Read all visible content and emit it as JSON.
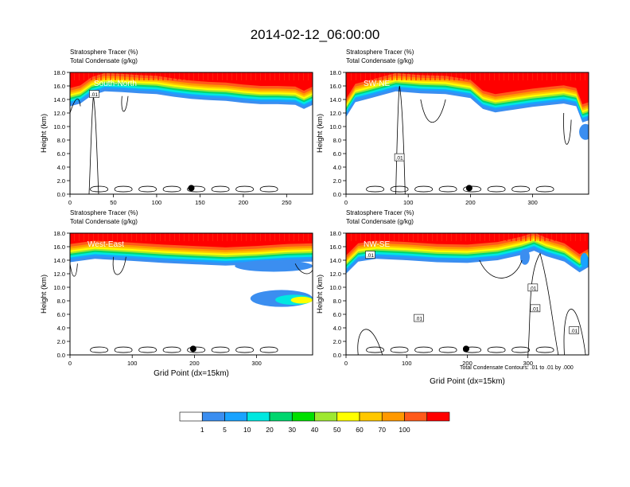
{
  "page_title": "2014-02-12_06:00:00",
  "colors": {
    "levels": [
      "#ffffff",
      "#3b8ef0",
      "#19a3ff",
      "#00e8e0",
      "#00d66e",
      "#00e000",
      "#9ee830",
      "#ffff00",
      "#ffc800",
      "#ff9900",
      "#ff5a1a",
      "#ff0000"
    ],
    "contour": "#000000"
  },
  "colorbar": {
    "labels": [
      "1",
      "5",
      "10",
      "20",
      "30",
      "40",
      "50",
      "60",
      "70",
      "100"
    ]
  },
  "footnote": "Total Condensate Contours: .01 to .01 by .000",
  "chart_data": [
    {
      "type": "heatmap",
      "title": "Stratosphere Tracer   (%)",
      "subtitle": "Total Condensate   (g/kg)",
      "panel_label": "South-North",
      "ylabel": "Height (km)",
      "xlabel": "",
      "xlim": [
        0,
        280
      ],
      "ylim": [
        0,
        18
      ],
      "xticks": [
        "0",
        "50",
        "100",
        "150",
        "200",
        "250"
      ],
      "yticks": [
        "0.0",
        "2.0",
        "4.0",
        "6.0",
        "8.0",
        "10.0",
        "12.0",
        "14.0",
        "16.0",
        "18.0"
      ],
      "contour_labels": [
        ".01"
      ],
      "marker_x": 140,
      "tropopause_km": [
        [
          0,
          14.6
        ],
        [
          12,
          15.0
        ],
        [
          25,
          16.2
        ],
        [
          40,
          16.8
        ],
        [
          60,
          16.7
        ],
        [
          80,
          16.5
        ],
        [
          100,
          16.4
        ],
        [
          120,
          16.0
        ],
        [
          140,
          15.7
        ],
        [
          160,
          15.5
        ],
        [
          180,
          15.4
        ],
        [
          200,
          15.1
        ],
        [
          220,
          14.9
        ],
        [
          240,
          14.9
        ],
        [
          260,
          14.8
        ],
        [
          270,
          14.2
        ],
        [
          280,
          14.8
        ]
      ]
    },
    {
      "type": "heatmap",
      "title": "Stratosphere Tracer   (%)",
      "subtitle": "Total Condensate   (g/kg)",
      "panel_label": "SW-NE",
      "ylabel": "Height (km)",
      "xlabel": "",
      "xlim": [
        0,
        390
      ],
      "ylim": [
        0,
        18
      ],
      "xticks": [
        "0",
        "100",
        "200",
        "300"
      ],
      "yticks": [
        "0.0",
        "2.0",
        "4.0",
        "6.0",
        "8.0",
        "10.0",
        "12.0",
        "14.0",
        "16.0",
        "18.0"
      ],
      "contour_labels": [
        ".01"
      ],
      "marker_x": 198,
      "tropopause_km": [
        [
          0,
          13.0
        ],
        [
          15,
          15.2
        ],
        [
          40,
          15.8
        ],
        [
          80,
          16.8
        ],
        [
          120,
          16.5
        ],
        [
          160,
          16.4
        ],
        [
          200,
          15.8
        ],
        [
          220,
          14.2
        ],
        [
          240,
          13.7
        ],
        [
          270,
          14.1
        ],
        [
          300,
          14.5
        ],
        [
          330,
          14.8
        ],
        [
          350,
          15.0
        ],
        [
          370,
          14.6
        ],
        [
          380,
          12.2
        ],
        [
          390,
          12.5
        ]
      ]
    },
    {
      "type": "heatmap",
      "title": "Stratosphere Tracer   (%)",
      "subtitle": "Total Condensate   (g/kg)",
      "panel_label": "West-East",
      "ylabel": "Height (km)",
      "xlabel": "Grid Point (dx=15km)",
      "xlim": [
        0,
        390
      ],
      "ylim": [
        0,
        18
      ],
      "xticks": [
        "0",
        "100",
        "200",
        "300"
      ],
      "yticks": [
        "0.0",
        "2.0",
        "4.0",
        "6.0",
        "8.0",
        "10.0",
        "12.0",
        "14.0",
        "16.0",
        "18.0"
      ],
      "contour_labels": [],
      "marker_x": 198,
      "tropopause_km": [
        [
          0,
          15.3
        ],
        [
          40,
          15.8
        ],
        [
          100,
          15.5
        ],
        [
          150,
          15.2
        ],
        [
          200,
          15.0
        ],
        [
          250,
          14.8
        ],
        [
          300,
          15.0
        ],
        [
          350,
          15.3
        ],
        [
          390,
          15.4
        ]
      ]
    },
    {
      "type": "heatmap",
      "title": "Stratosphere Tracer   (%)",
      "subtitle": "Total Condensate   (g/kg)",
      "panel_label": "NW-SE",
      "ylabel": "Height (km)",
      "xlabel": "Grid Point (dx=15km)",
      "xlim": [
        0,
        400
      ],
      "ylim": [
        0,
        18
      ],
      "xticks": [
        "0",
        "100",
        "200",
        "300"
      ],
      "yticks": [
        "0.0",
        "2.0",
        "4.0",
        "6.0",
        "8.0",
        "10.0",
        "12.0",
        "14.0",
        "16.0",
        "18.0"
      ],
      "contour_labels": [
        ".01",
        ".01",
        ".01",
        ".01",
        ".01"
      ],
      "marker_x": 198,
      "tropopause_km": [
        [
          0,
          13.6
        ],
        [
          20,
          15.4
        ],
        [
          50,
          15.8
        ],
        [
          100,
          15.6
        ],
        [
          150,
          15.3
        ],
        [
          200,
          15.2
        ],
        [
          250,
          15.6
        ],
        [
          290,
          16.4
        ],
        [
          310,
          17.0
        ],
        [
          330,
          16.2
        ],
        [
          360,
          15.4
        ],
        [
          385,
          13.8
        ],
        [
          400,
          14.6
        ]
      ]
    }
  ]
}
